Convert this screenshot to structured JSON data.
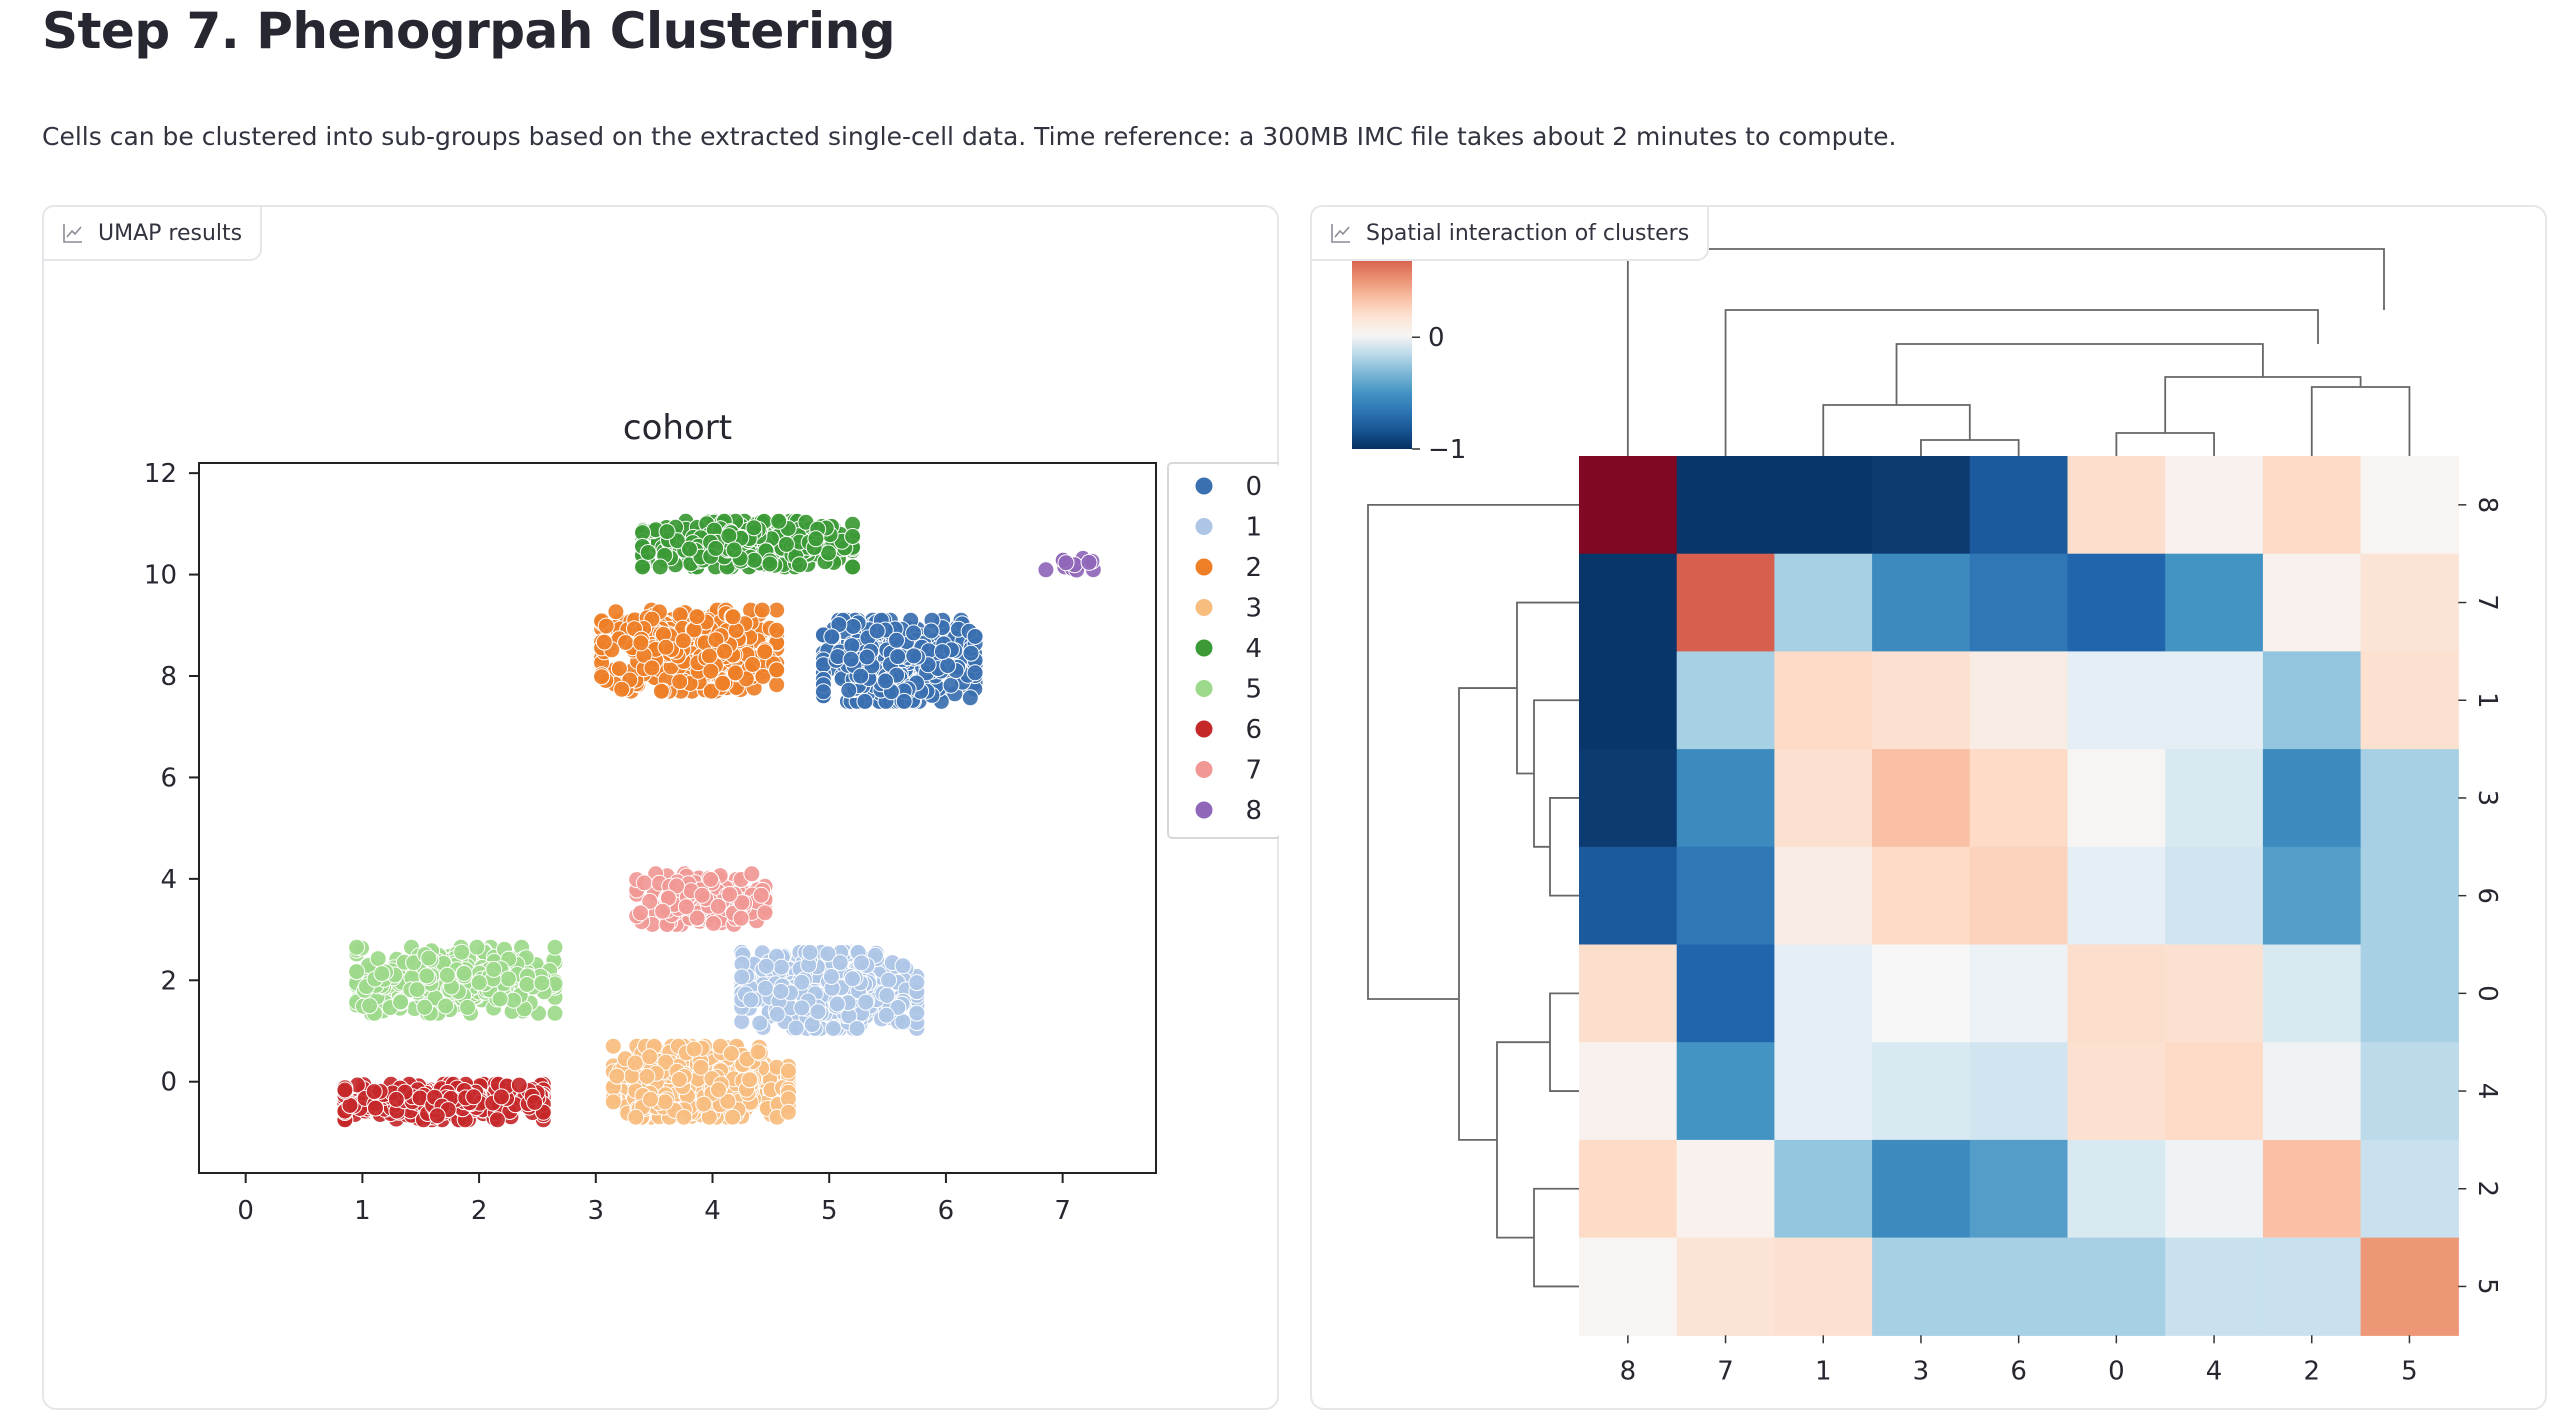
{
  "page": {
    "title": "Step 7. Phenogrpah Clustering",
    "description": "Cells can be clustered into sub-groups based on the extracted single-cell data. Time reference: a 300MB IMC file takes about 2 minutes to compute."
  },
  "panels": {
    "umap": {
      "tab_label": "UMAP results",
      "icon": "chart-icon"
    },
    "heatmap": {
      "tab_label": "Spatial interaction of clusters",
      "icon": "chart-icon"
    }
  },
  "chart_data": [
    {
      "type": "scatter",
      "title": "cohort",
      "xlabel": "",
      "ylabel": "",
      "xlim": [
        -0.4,
        7.8
      ],
      "ylim": [
        -1.8,
        12.2
      ],
      "xticks": [
        "0",
        "1",
        "2",
        "3",
        "4",
        "5",
        "6",
        "7"
      ],
      "yticks": [
        "0",
        "2",
        "4",
        "6",
        "8",
        "10",
        "12"
      ],
      "legend": {
        "position": "right-top",
        "entries": [
          "0",
          "1",
          "2",
          "3",
          "4",
          "5",
          "6",
          "7",
          "8"
        ]
      },
      "colors": [
        "#3a6fb0",
        "#aec5e6",
        "#ee7f27",
        "#f7bd7f",
        "#3b9a35",
        "#9dd98a",
        "#c6282a",
        "#f19895",
        "#8f66b8"
      ],
      "clusters": [
        {
          "name": "0",
          "center": [
            5.6,
            8.3
          ],
          "spread": [
            0.65,
            0.8
          ],
          "n": 520
        },
        {
          "name": "1",
          "center": [
            5.0,
            1.8
          ],
          "spread": [
            0.75,
            0.75
          ],
          "n": 520
        },
        {
          "name": "2",
          "center": [
            3.8,
            8.5
          ],
          "spread": [
            0.75,
            0.8
          ],
          "n": 460
        },
        {
          "name": "3",
          "center": [
            3.9,
            0.0
          ],
          "spread": [
            0.75,
            0.7
          ],
          "n": 500
        },
        {
          "name": "4",
          "center": [
            4.3,
            10.6
          ],
          "spread": [
            0.9,
            0.45
          ],
          "n": 500
        },
        {
          "name": "5",
          "center": [
            1.8,
            2.0
          ],
          "spread": [
            0.85,
            0.65
          ],
          "n": 360
        },
        {
          "name": "6",
          "center": [
            1.7,
            -0.4
          ],
          "spread": [
            0.85,
            0.35
          ],
          "n": 440
        },
        {
          "name": "7",
          "center": [
            3.9,
            3.6
          ],
          "spread": [
            0.55,
            0.5
          ],
          "n": 200
        },
        {
          "name": "8",
          "center": [
            7.1,
            10.2
          ],
          "spread": [
            0.25,
            0.12
          ],
          "n": 14
        }
      ]
    },
    {
      "type": "heatmap",
      "colorbar": {
        "ticks": [
          "0",
          "−1"
        ],
        "range": [
          -1,
          0.7
        ]
      },
      "row_labels": [
        "8",
        "7",
        "1",
        "3",
        "6",
        "0",
        "4",
        "2",
        "5"
      ],
      "col_labels": [
        "8",
        "7",
        "1",
        "3",
        "6",
        "0",
        "4",
        "2",
        "5"
      ],
      "values": [
        [
          0.95,
          -0.97,
          -0.97,
          -0.95,
          -0.8,
          0.22,
          0.05,
          0.25,
          0.03
        ],
        [
          -0.97,
          0.7,
          -0.2,
          -0.55,
          -0.65,
          -0.75,
          -0.5,
          0.05,
          0.17
        ],
        [
          -0.97,
          -0.2,
          0.25,
          0.2,
          0.1,
          -0.05,
          -0.05,
          -0.25,
          0.2
        ],
        [
          -0.95,
          -0.55,
          0.2,
          0.35,
          0.25,
          0.02,
          -0.08,
          -0.55,
          -0.2
        ],
        [
          -0.8,
          -0.65,
          0.1,
          0.25,
          0.28,
          -0.05,
          -0.1,
          -0.45,
          -0.2
        ],
        [
          0.22,
          -0.75,
          -0.05,
          0.0,
          -0.03,
          0.22,
          0.2,
          -0.08,
          -0.2
        ],
        [
          0.05,
          -0.5,
          -0.05,
          -0.08,
          -0.1,
          0.2,
          0.25,
          -0.02,
          -0.15
        ],
        [
          0.25,
          0.05,
          -0.25,
          -0.55,
          -0.45,
          -0.08,
          -0.02,
          0.35,
          -0.12
        ],
        [
          0.03,
          0.17,
          0.2,
          -0.2,
          -0.2,
          -0.2,
          -0.12,
          -0.12,
          0.5
        ]
      ]
    }
  ]
}
